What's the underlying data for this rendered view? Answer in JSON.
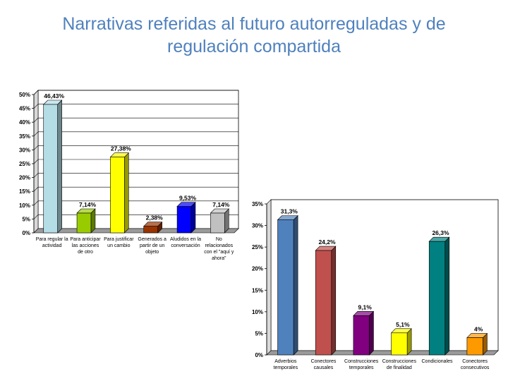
{
  "slide": {
    "title_line1": "Narrativas referidas al futuro autorreguladas y de",
    "title_line2": "regulación compartida"
  },
  "chart_data": [
    {
      "type": "bar",
      "categories": [
        [
          "Para regular la",
          "actividad"
        ],
        [
          "Para anticipar",
          "las acciones",
          "de otro"
        ],
        [
          "Para justificar",
          "un cambio"
        ],
        [
          "Generados a",
          "partir de un",
          "objeto"
        ],
        [
          "Aludidos en la",
          "conversación"
        ],
        [
          "No",
          "relacionados",
          "con el \"aquí y",
          "ahora\""
        ]
      ],
      "values": [
        46.43,
        7.14,
        27.38,
        2.38,
        9.53,
        7.14
      ],
      "data_labels": [
        "46,43%",
        "7,14%",
        "27,38%",
        "2,38%",
        "9,53%",
        "7,14%"
      ],
      "colors": [
        "#b4dde6",
        "#99cc00",
        "#ffff00",
        "#993300",
        "#0000ff",
        "#c0c0c0"
      ],
      "ylim": [
        0,
        50
      ],
      "yticks": [
        "0%",
        "5%",
        "10%",
        "15%",
        "20%",
        "25%",
        "30%",
        "35%",
        "40%",
        "45%",
        "50%"
      ],
      "grid": true,
      "title": "",
      "xlabel": "",
      "ylabel": ""
    },
    {
      "type": "bar",
      "categories": [
        [
          "Adverbios",
          "temporales"
        ],
        [
          "Conectores",
          "causales"
        ],
        [
          "Construcciones",
          "temporales"
        ],
        [
          "Construcciones",
          "de finalidad"
        ],
        [
          "Condicionales"
        ],
        [
          "Conectores",
          "consecutivos"
        ]
      ],
      "values": [
        31.3,
        24.2,
        9.1,
        5.1,
        26.3,
        4
      ],
      "data_labels": [
        "31,3%",
        "24,2%",
        "9,1%",
        "5,1%",
        "26,3%",
        "4%"
      ],
      "colors": [
        "#4f81bd",
        "#c0504d",
        "#800080",
        "#ffff00",
        "#008080",
        "#ff9900"
      ],
      "ylim": [
        0,
        35
      ],
      "yticks": [
        "0%",
        "5%",
        "10%",
        "15%",
        "20%",
        "25%",
        "30%",
        "35%"
      ],
      "grid": false,
      "title": "",
      "xlabel": "",
      "ylabel": ""
    }
  ]
}
